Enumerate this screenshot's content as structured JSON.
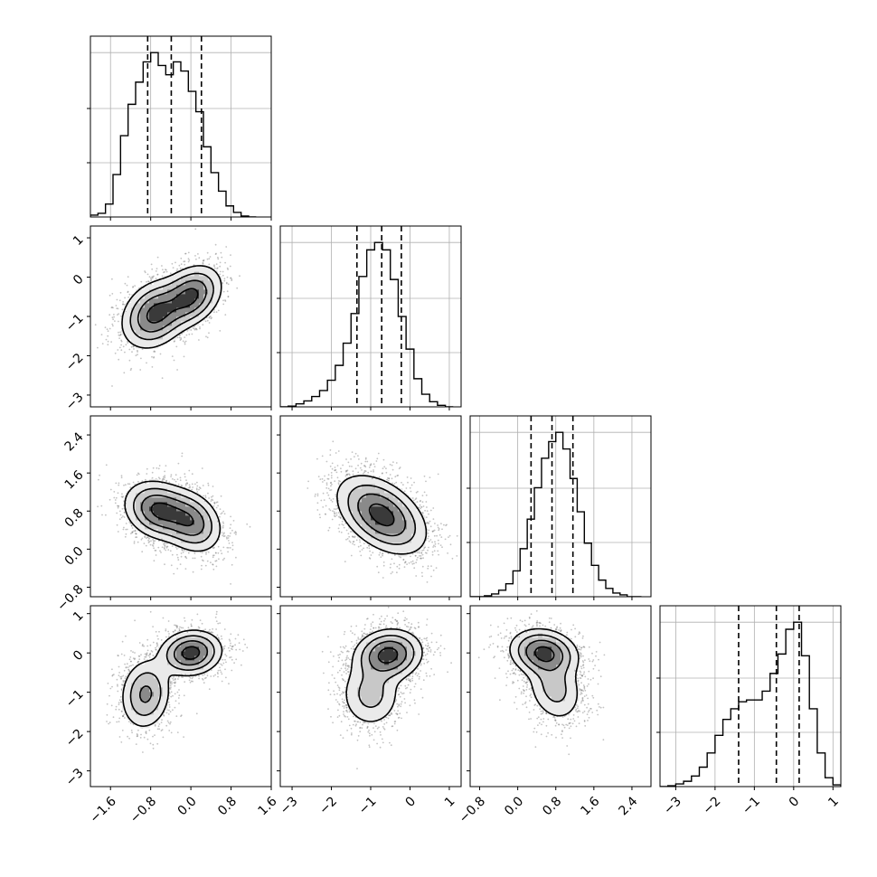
{
  "chart_data": {
    "type": "corner",
    "parameters": 4,
    "axes": [
      {
        "index": 0,
        "range": [
          -2.0,
          1.6
        ],
        "ticks": [
          -1.6,
          -0.8,
          0.0,
          0.8,
          1.6
        ],
        "tick_labels": [
          "−1.6",
          "−0.8",
          "0.0",
          "0.8",
          "1.6"
        ]
      },
      {
        "index": 1,
        "range": [
          -3.3,
          1.3
        ],
        "ticks": [
          -3,
          -2,
          -1,
          0,
          1
        ],
        "tick_labels": [
          "−3",
          "−2",
          "−1",
          "0",
          "1"
        ]
      },
      {
        "index": 2,
        "range": [
          -1.0,
          2.8
        ],
        "ticks": [
          -0.8,
          0.0,
          0.8,
          1.6,
          2.4
        ],
        "tick_labels": [
          "−0.8",
          "0.0",
          "0.8",
          "1.6",
          "2.4"
        ]
      },
      {
        "index": 3,
        "range": [
          -3.4,
          1.2
        ],
        "ticks": [
          -3,
          -2,
          -1,
          0,
          1
        ],
        "tick_labels": [
          "−3",
          "−2",
          "−1",
          "0",
          "1"
        ]
      }
    ],
    "marginals": [
      {
        "index": 0,
        "bin_edges": [
          -2.0,
          -1.85,
          -1.7,
          -1.55,
          -1.4,
          -1.25,
          -1.1,
          -0.95,
          -0.8,
          -0.65,
          -0.5,
          -0.35,
          -0.2,
          -0.05,
          0.1,
          0.25,
          0.4,
          0.55,
          0.7,
          0.85,
          1.0,
          1.15,
          1.3
        ],
        "counts": [
          2,
          4,
          14,
          46,
          88,
          122,
          146,
          168,
          178,
          164,
          154,
          168,
          158,
          136,
          114,
          76,
          48,
          28,
          12,
          5,
          1,
          0
        ],
        "quantiles": [
          -0.86,
          -0.39,
          0.21
        ]
      },
      {
        "index": 1,
        "bin_edges": [
          -3.3,
          -3.1,
          -2.9,
          -2.7,
          -2.5,
          -2.3,
          -2.1,
          -1.9,
          -1.7,
          -1.5,
          -1.3,
          -1.1,
          -0.9,
          -0.7,
          -0.5,
          -0.3,
          -0.1,
          0.1,
          0.3,
          0.5,
          0.7,
          0.9,
          1.1
        ],
        "counts": [
          0,
          1,
          4,
          8,
          14,
          22,
          36,
          56,
          86,
          126,
          176,
          212,
          222,
          212,
          172,
          122,
          78,
          38,
          17,
          7,
          2,
          0
        ],
        "quantiles": [
          -1.35,
          -0.72,
          -0.22
        ]
      },
      {
        "index": 2,
        "bin_edges": [
          -1.0,
          -0.85,
          -0.7,
          -0.55,
          -0.4,
          -0.25,
          -0.1,
          0.05,
          0.2,
          0.35,
          0.5,
          0.65,
          0.8,
          0.95,
          1.1,
          1.25,
          1.4,
          1.55,
          1.7,
          1.85,
          2.0,
          2.15,
          2.3,
          2.45,
          2.6
        ],
        "counts": [
          0,
          0,
          1,
          3,
          7,
          14,
          28,
          52,
          84,
          118,
          150,
          168,
          178,
          160,
          128,
          92,
          58,
          34,
          18,
          9,
          4,
          2,
          0,
          0
        ],
        "quantiles": [
          0.28,
          0.72,
          1.16
        ]
      },
      {
        "index": 3,
        "bin_edges": [
          -3.4,
          -3.2,
          -3.0,
          -2.8,
          -2.6,
          -2.4,
          -2.2,
          -2.0,
          -1.8,
          -1.6,
          -1.4,
          -1.2,
          -1.0,
          -0.8,
          -0.6,
          -0.4,
          -0.2,
          0.0,
          0.2,
          0.4,
          0.6,
          0.8,
          1.0,
          1.2
        ],
        "counts": [
          0,
          1,
          3,
          6,
          12,
          22,
          38,
          58,
          76,
          88,
          96,
          98,
          98,
          108,
          128,
          150,
          178,
          186,
          148,
          88,
          38,
          10,
          2
        ],
        "quantiles": [
          -1.4,
          -0.44,
          0.14
        ]
      }
    ],
    "joints": [
      {
        "x": 0,
        "y": 1,
        "components": [
          {
            "w": 0.55,
            "mx": -0.72,
            "my": -0.95,
            "sx": 0.32,
            "sy": 0.42,
            "rho": 0.25
          },
          {
            "w": 0.45,
            "mx": 0.0,
            "my": -0.48,
            "sx": 0.3,
            "sy": 0.38,
            "rho": 0.3
          }
        ],
        "scatter_points": 2200,
        "seed": 11
      },
      {
        "x": 0,
        "y": 2,
        "components": [
          {
            "w": 0.55,
            "mx": -0.65,
            "my": 0.82,
            "sx": 0.33,
            "sy": 0.3,
            "rho": -0.2
          },
          {
            "w": 0.45,
            "mx": 0.0,
            "my": 0.58,
            "sx": 0.3,
            "sy": 0.32,
            "rho": -0.25
          }
        ],
        "scatter_points": 2200,
        "seed": 23
      },
      {
        "x": 1,
        "y": 2,
        "components": [
          {
            "w": 1.0,
            "mx": -0.72,
            "my": 0.72,
            "sx": 0.55,
            "sy": 0.4,
            "rho": -0.45
          }
        ],
        "scatter_points": 2200,
        "seed": 37
      },
      {
        "x": 0,
        "y": 3,
        "components": [
          {
            "w": 0.45,
            "mx": -0.9,
            "my": -1.05,
            "sx": 0.25,
            "sy": 0.45,
            "rho": 0.1
          },
          {
            "w": 0.55,
            "mx": 0.0,
            "my": 0.0,
            "sx": 0.3,
            "sy": 0.28,
            "rho": 0.1
          }
        ],
        "scatter_points": 2200,
        "seed": 41
      },
      {
        "x": 1,
        "y": 3,
        "components": [
          {
            "w": 0.35,
            "mx": -1.0,
            "my": -1.05,
            "sx": 0.4,
            "sy": 0.45,
            "rho": 0.0
          },
          {
            "w": 0.65,
            "mx": -0.55,
            "my": -0.05,
            "sx": 0.42,
            "sy": 0.32,
            "rho": 0.1
          }
        ],
        "scatter_points": 2200,
        "seed": 53
      },
      {
        "x": 2,
        "y": 3,
        "components": [
          {
            "w": 0.35,
            "mx": 0.78,
            "my": -0.9,
            "sx": 0.3,
            "sy": 0.45,
            "rho": -0.2
          },
          {
            "w": 0.65,
            "mx": 0.55,
            "my": 0.0,
            "sx": 0.35,
            "sy": 0.3,
            "rho": -0.15
          }
        ],
        "scatter_points": 2200,
        "seed": 67
      }
    ],
    "contour_levels": [
      0.12,
      0.3,
      0.55,
      0.85
    ],
    "grid": true
  }
}
